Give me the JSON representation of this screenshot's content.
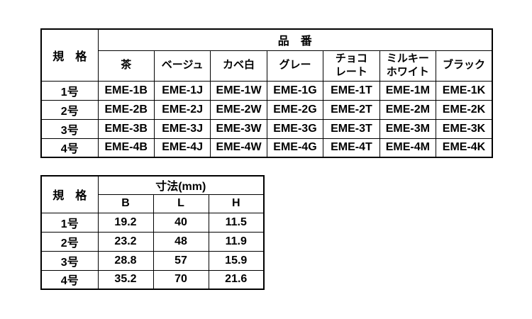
{
  "page": {
    "background_color": "#ffffff",
    "text_color": "#000000",
    "border_color": "#000000"
  },
  "product_table": {
    "spec_header": "規　格",
    "group_header": "品　番",
    "color_columns": [
      "茶",
      "ベージュ",
      "カベ白",
      "グレー",
      "チョコ\nレート",
      "ミルキー\nホワイト",
      "ブラック"
    ],
    "rows": [
      {
        "spec": "1号",
        "codes": [
          "EME-1B",
          "EME-1J",
          "EME-1W",
          "EME-1G",
          "EME-1T",
          "EME-1M",
          "EME-1K"
        ]
      },
      {
        "spec": "2号",
        "codes": [
          "EME-2B",
          "EME-2J",
          "EME-2W",
          "EME-2G",
          "EME-2T",
          "EME-2M",
          "EME-2K"
        ]
      },
      {
        "spec": "3号",
        "codes": [
          "EME-3B",
          "EME-3J",
          "EME-3W",
          "EME-3G",
          "EME-3T",
          "EME-3M",
          "EME-3K"
        ]
      },
      {
        "spec": "4号",
        "codes": [
          "EME-4B",
          "EME-4J",
          "EME-4W",
          "EME-4G",
          "EME-4T",
          "EME-4M",
          "EME-4K"
        ]
      }
    ]
  },
  "dimension_table": {
    "spec_header": "規　格",
    "group_header": "寸法(mm)",
    "dim_columns": [
      "B",
      "L",
      "H"
    ],
    "rows": [
      {
        "spec": "1号",
        "values": [
          "19.2",
          "40",
          "11.5"
        ]
      },
      {
        "spec": "2号",
        "values": [
          "23.2",
          "48",
          "11.9"
        ]
      },
      {
        "spec": "3号",
        "values": [
          "28.8",
          "57",
          "15.9"
        ]
      },
      {
        "spec": "4号",
        "values": [
          "35.2",
          "70",
          "21.6"
        ]
      }
    ]
  }
}
